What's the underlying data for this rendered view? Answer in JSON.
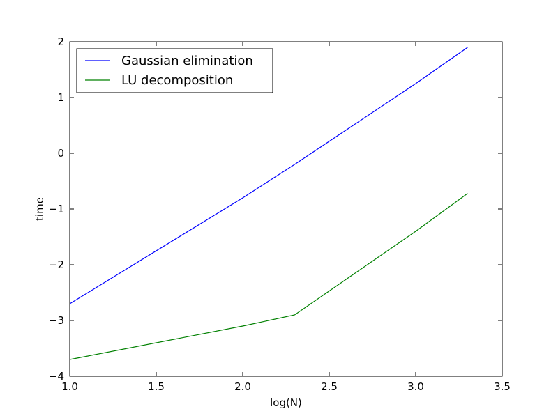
{
  "chart_data": {
    "type": "line",
    "title": "",
    "xlabel": "log(N)",
    "ylabel": "time",
    "xlim": [
      1.0,
      3.5
    ],
    "ylim": [
      -4,
      2
    ],
    "xticks": [
      1.0,
      1.5,
      2.0,
      2.5,
      3.0,
      3.5
    ],
    "yticks": [
      -4,
      -3,
      -2,
      -1,
      0,
      1,
      2
    ],
    "xtick_labels": [
      "1.0",
      "1.5",
      "2.0",
      "2.5",
      "3.0",
      "3.5"
    ],
    "ytick_labels": [
      "−4",
      "−3",
      "−2",
      "−1",
      "0",
      "1",
      "2"
    ],
    "grid": false,
    "legend": {
      "placement": "upper-left"
    },
    "series": [
      {
        "name": "Gaussian elimination",
        "color": "#0000ff",
        "x": [
          1.0,
          2.0,
          2.3,
          3.0,
          3.3
        ],
        "y": [
          -2.7,
          -0.8,
          -0.2,
          1.25,
          1.9
        ]
      },
      {
        "name": "LU decomposition",
        "color": "#008000",
        "x": [
          1.0,
          2.0,
          2.3,
          3.0,
          3.3
        ],
        "y": [
          -3.7,
          -3.1,
          -2.9,
          -1.4,
          -0.72
        ]
      }
    ]
  }
}
